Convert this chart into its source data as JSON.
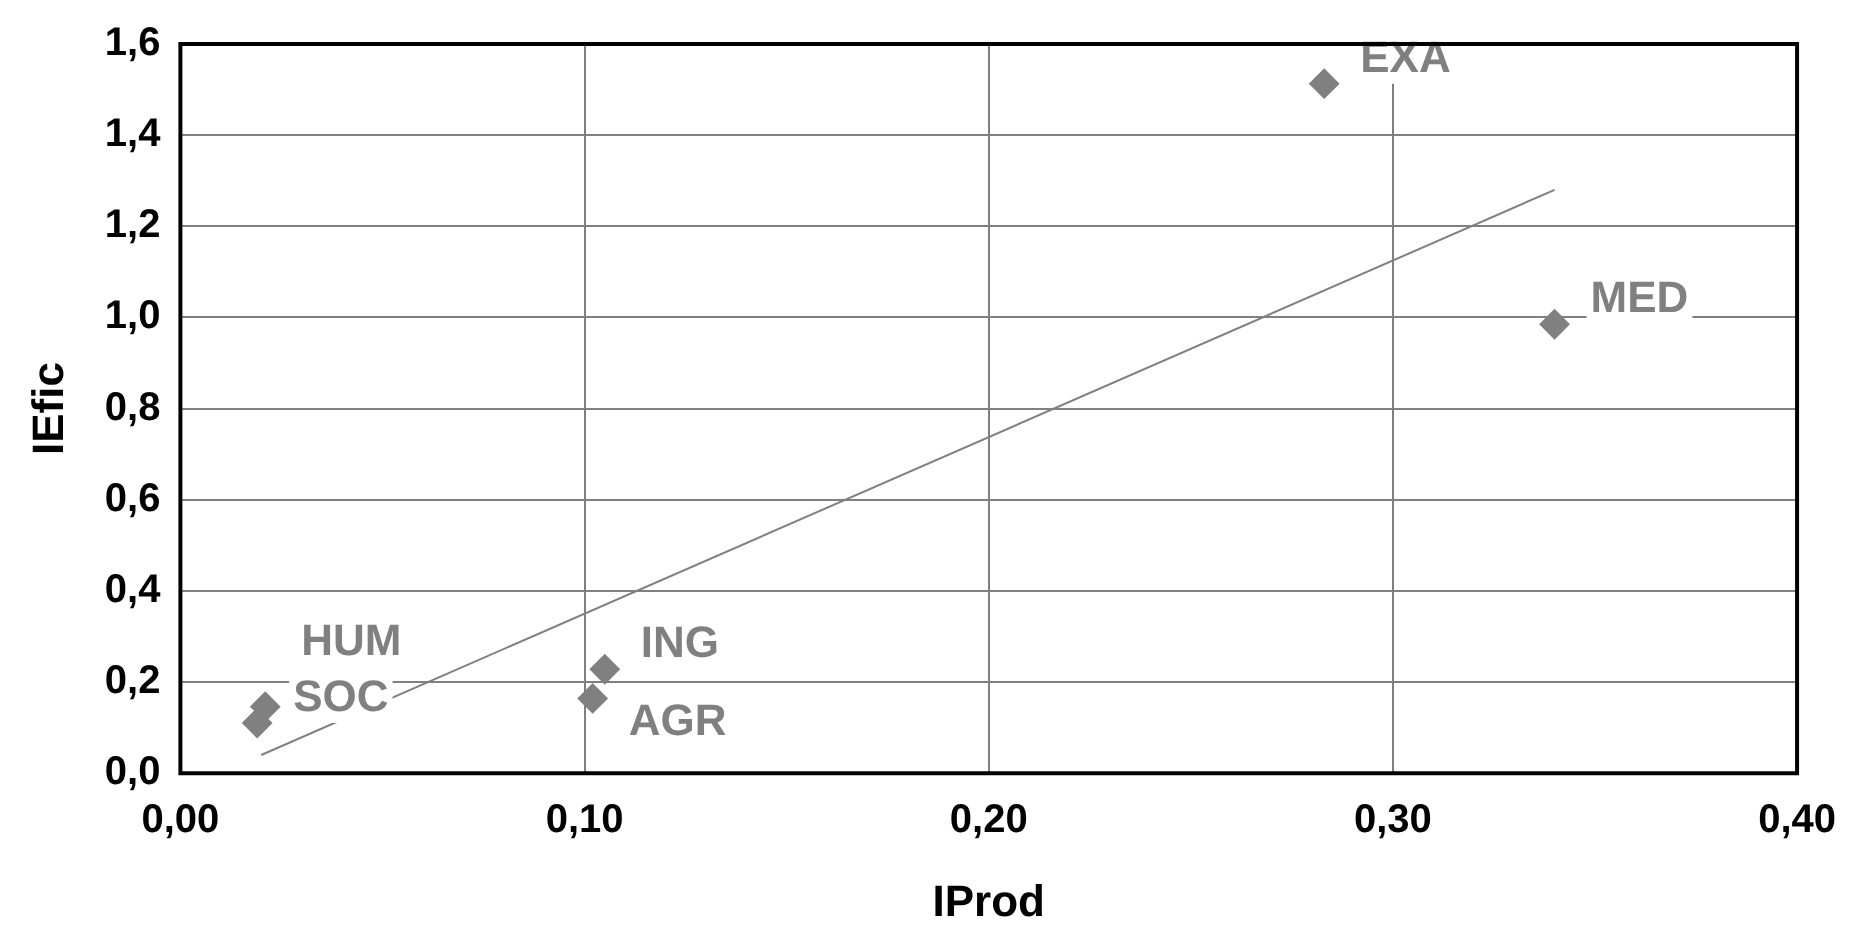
{
  "chart_data": {
    "type": "scatter",
    "xlabel": "IProd",
    "ylabel": "IEfic",
    "xlim": [
      0,
      0.4
    ],
    "xticks": [
      {
        "value": 0,
        "label": "0,00"
      },
      {
        "value": 0.1,
        "label": "0,10"
      },
      {
        "value": 0.2,
        "label": "0,20"
      },
      {
        "value": 0.3,
        "label": "0,30"
      },
      {
        "value": 0.4,
        "label": "0,40"
      }
    ],
    "ylim": [
      0,
      1.6
    ],
    "yticks": [
      {
        "value": 0,
        "label": "0,0"
      },
      {
        "value": 0.2,
        "label": "0,2"
      },
      {
        "value": 0.4,
        "label": "0,4"
      },
      {
        "value": 0.6,
        "label": "0,6"
      },
      {
        "value": 0.8,
        "label": "0,8"
      },
      {
        "value": 1,
        "label": "1,0"
      },
      {
        "value": 1.2,
        "label": "1,2"
      },
      {
        "value": 1.4,
        "label": "1,4"
      },
      {
        "value": 1.6,
        "label": "1,6"
      }
    ],
    "grid": true,
    "legend": false,
    "marker": "diamond",
    "series": [
      {
        "name": "SOC",
        "color": "#808080",
        "x": [
          0.019
        ],
        "values": [
          0.11
        ]
      },
      {
        "name": "HUM",
        "color": "#808080",
        "x": [
          0.021
        ],
        "values": [
          0.146
        ]
      },
      {
        "name": "ING",
        "color": "#808080",
        "x": [
          0.105
        ],
        "values": [
          0.228
        ]
      },
      {
        "name": "AGR",
        "color": "#808080",
        "x": [
          0.102
        ],
        "values": [
          0.164
        ]
      },
      {
        "name": "EXA",
        "color": "#808080",
        "x": [
          0.283
        ],
        "values": [
          1.513
        ]
      },
      {
        "name": "MED",
        "color": "#808080",
        "x": [
          0.34
        ],
        "values": [
          0.985
        ]
      },
      {
        "type": "line",
        "color": "#808080",
        "x": [
          0.02,
          0.34
        ],
        "values": [
          0.04,
          1.28
        ],
        "marker": "none",
        "line_style": "solid"
      }
    ]
  }
}
